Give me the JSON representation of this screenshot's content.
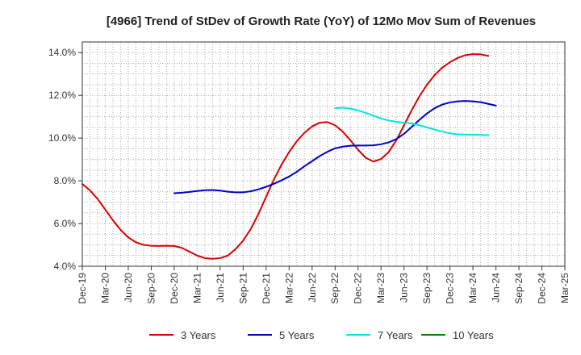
{
  "chart_data": {
    "type": "line",
    "title": "[4966]  Trend of StDev of Growth Rate (YoY) of 12Mo Mov Sum of Revenues",
    "xlabel": "",
    "ylabel": "",
    "ylim": [
      4.0,
      14.5
    ],
    "yticks": [
      4.0,
      6.0,
      8.0,
      10.0,
      12.0,
      14.0
    ],
    "ytick_labels": [
      "4.0%",
      "6.0%",
      "8.0%",
      "10.0%",
      "12.0%",
      "14.0%"
    ],
    "x_tick_labels": [
      "Dec-19",
      "Mar-20",
      "Jun-20",
      "Sep-20",
      "Dec-20",
      "Mar-21",
      "Jun-21",
      "Sep-21",
      "Dec-21",
      "Mar-22",
      "Jun-22",
      "Sep-22",
      "Dec-22",
      "Mar-23",
      "Jun-23",
      "Sep-23",
      "Dec-23",
      "Mar-24",
      "Jun-24",
      "Sep-24",
      "Dec-24",
      "Mar-25"
    ],
    "grid": true,
    "legend_position": "bottom",
    "series": [
      {
        "name": "3 Years",
        "color": "#dd0000",
        "start_index": 0,
        "values": [
          7.85,
          7.55,
          7.15,
          6.65,
          6.15,
          5.7,
          5.35,
          5.12,
          5.0,
          4.96,
          4.95,
          4.96,
          4.95,
          4.86,
          4.68,
          4.5,
          4.38,
          4.35,
          4.38,
          4.5,
          4.8,
          5.2,
          5.75,
          6.45,
          7.25,
          8.05,
          8.75,
          9.35,
          9.85,
          10.25,
          10.55,
          10.72,
          10.75,
          10.6,
          10.3,
          9.9,
          9.45,
          9.08,
          8.9,
          9.02,
          9.35,
          9.9,
          10.6,
          11.3,
          11.95,
          12.5,
          12.95,
          13.3,
          13.55,
          13.75,
          13.88,
          13.93,
          13.92,
          13.85
        ]
      },
      {
        "name": "5 Years",
        "color": "#0000cc",
        "start_index": 12,
        "values": [
          7.42,
          7.44,
          7.48,
          7.52,
          7.56,
          7.57,
          7.54,
          7.49,
          7.46,
          7.46,
          7.51,
          7.6,
          7.72,
          7.86,
          8.02,
          8.2,
          8.42,
          8.68,
          8.92,
          9.16,
          9.36,
          9.52,
          9.6,
          9.64,
          9.65,
          9.65,
          9.66,
          9.71,
          9.8,
          9.95,
          10.2,
          10.52,
          10.85,
          11.15,
          11.4,
          11.57,
          11.67,
          11.72,
          11.74,
          11.72,
          11.68,
          11.6,
          11.52
        ]
      },
      {
        "name": "7 Years",
        "color": "#00e5e5",
        "start_index": 33,
        "values": [
          11.4,
          11.42,
          11.38,
          11.3,
          11.18,
          11.05,
          10.92,
          10.82,
          10.76,
          10.72,
          10.68,
          10.6,
          10.5,
          10.4,
          10.3,
          10.22,
          10.18,
          10.16,
          10.15,
          10.15,
          10.14
        ]
      },
      {
        "name": "10 Years",
        "color": "#008800",
        "start_index": 0,
        "values": []
      }
    ]
  }
}
